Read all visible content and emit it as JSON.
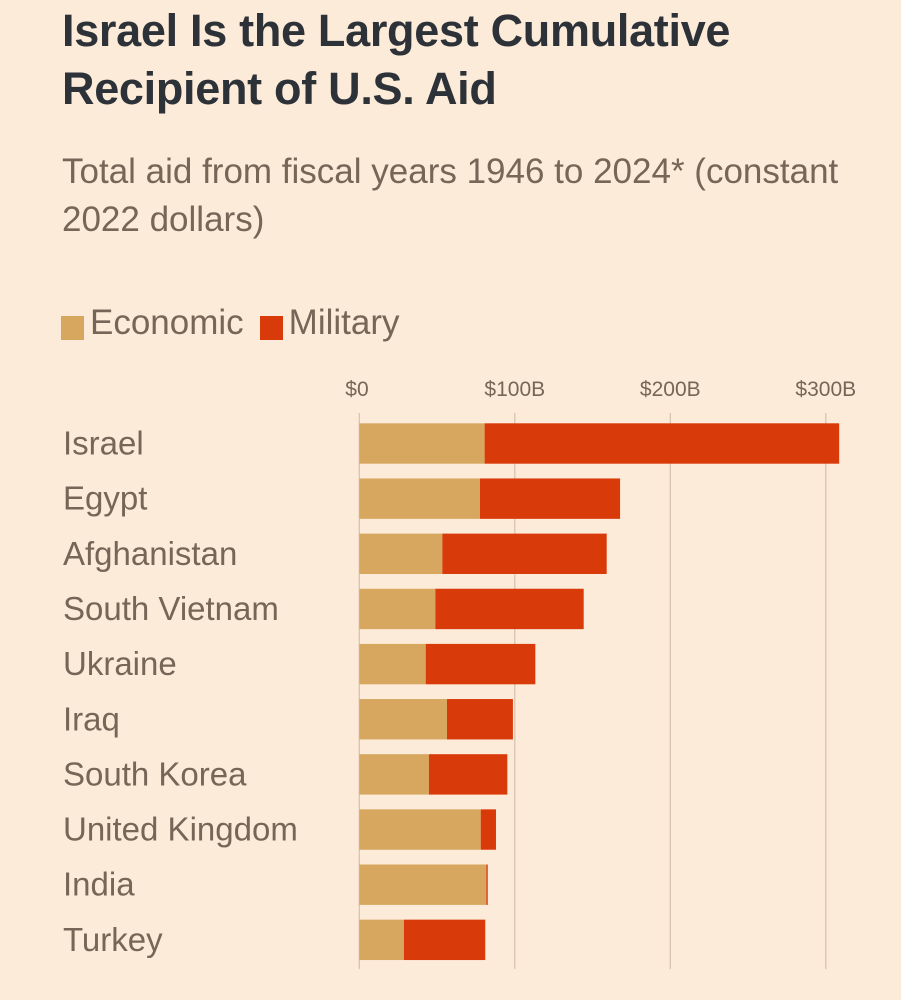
{
  "header": {
    "title": "Israel Is the Largest Cumulative Recipient of U.S. Aid",
    "subtitle": "Total aid from fiscal years 1946 to 2024* (constant 2022 dollars)"
  },
  "legend": {
    "items": [
      {
        "label": "Economic",
        "color": "#D7A75F"
      },
      {
        "label": "Military",
        "color": "#D93A0A"
      }
    ]
  },
  "colors": {
    "background": "#FDEBD9",
    "economic": "#D7A75F",
    "military": "#D93A0A",
    "gridline": "#D8C3B0",
    "text_primary": "#2D3238",
    "text_secondary": "#766657"
  },
  "chart_data": {
    "type": "bar",
    "orientation": "horizontal",
    "stacked": true,
    "title": "Israel Is the Largest Cumulative Recipient of U.S. Aid",
    "subtitle": "Total aid from fiscal years 1946 to 2024* (constant 2022 dollars)",
    "xlabel": "",
    "ylabel": "",
    "unit": "billions USD (constant 2022 dollars)",
    "xlim": [
      0,
      310
    ],
    "ticks": [
      0,
      100,
      200,
      300
    ],
    "tick_labels": [
      "$0",
      "$100B",
      "$200B",
      "$300B"
    ],
    "grid": true,
    "legend_position": "top-left",
    "categories": [
      "Israel",
      "Egypt",
      "Afghanistan",
      "South Vietnam",
      "Ukraine",
      "Iraq",
      "South Korea",
      "United Kingdom",
      "India",
      "Turkey"
    ],
    "series": [
      {
        "name": "Economic",
        "color": "#D7A75F",
        "values": [
          80.6,
          77.6,
          53.4,
          48.9,
          42.7,
          56.4,
          44.8,
          78.1,
          81.7,
          28.7
        ]
      },
      {
        "name": "Military",
        "color": "#D93A0A",
        "values": [
          228.0,
          90.1,
          105.7,
          95.4,
          70.5,
          42.4,
          50.4,
          9.8,
          0.9,
          52.3
        ]
      }
    ]
  }
}
